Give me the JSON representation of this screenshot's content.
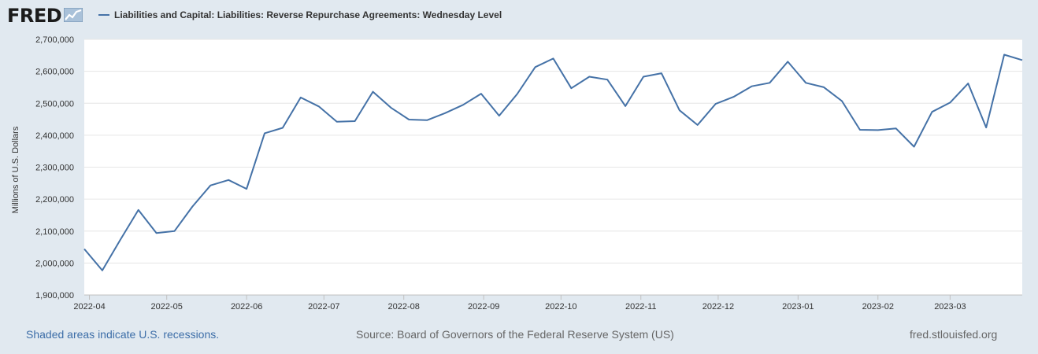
{
  "header": {
    "logo_text": "FRED",
    "logo_icon": "chart-line-icon",
    "legend_label": "Liabilities and Capital: Liabilities: Reverse Repurchase Agreements: Wednesday Level"
  },
  "footer": {
    "recessions_note": "Shaded areas indicate U.S. recessions.",
    "source": "Source: Board of Governors of the Federal Reserve System (US)",
    "site": "fred.stlouisfed.org"
  },
  "colors": {
    "series": "#4572a7",
    "background": "#e1e9f0",
    "plot": "#ffffff",
    "grid": "#e6e6e6",
    "link": "#3d6ea8"
  },
  "chart_data": {
    "type": "line",
    "title": "",
    "xlabel": "",
    "ylabel": "Millions of U.S. Dollars",
    "ylim": [
      1900000,
      2700000
    ],
    "yticks": [
      1900000,
      2000000,
      2100000,
      2200000,
      2300000,
      2400000,
      2500000,
      2600000,
      2700000
    ],
    "ytick_labels": [
      "1,900,000",
      "2,000,000",
      "2,100,000",
      "2,200,000",
      "2,300,000",
      "2,400,000",
      "2,500,000",
      "2,600,000",
      "2,700,000"
    ],
    "xlim": [
      "2022-03-30",
      "2023-03-29"
    ],
    "xticks": [
      "2022-04-01",
      "2022-05-01",
      "2022-06-01",
      "2022-07-01",
      "2022-08-01",
      "2022-09-01",
      "2022-10-01",
      "2022-11-01",
      "2022-12-01",
      "2023-01-01",
      "2023-02-01",
      "2023-03-01"
    ],
    "xtick_labels": [
      "2022-04",
      "2022-05",
      "2022-06",
      "2022-07",
      "2022-08",
      "2022-09",
      "2022-10",
      "2022-11",
      "2022-12",
      "2023-01",
      "2023-02",
      "2023-03"
    ],
    "grid": true,
    "legend": "top-left",
    "series": [
      {
        "name": "Liabilities and Capital: Liabilities: Reverse Repurchase Agreements: Wednesday Level",
        "x": [
          "2022-03-30",
          "2022-04-06",
          "2022-04-13",
          "2022-04-20",
          "2022-04-27",
          "2022-05-04",
          "2022-05-11",
          "2022-05-18",
          "2022-05-25",
          "2022-06-01",
          "2022-06-08",
          "2022-06-15",
          "2022-06-22",
          "2022-06-29",
          "2022-07-06",
          "2022-07-13",
          "2022-07-20",
          "2022-07-27",
          "2022-08-03",
          "2022-08-10",
          "2022-08-17",
          "2022-08-24",
          "2022-08-31",
          "2022-09-07",
          "2022-09-14",
          "2022-09-21",
          "2022-09-28",
          "2022-10-05",
          "2022-10-12",
          "2022-10-19",
          "2022-10-26",
          "2022-11-02",
          "2022-11-09",
          "2022-11-16",
          "2022-11-23",
          "2022-11-30",
          "2022-12-07",
          "2022-12-14",
          "2022-12-21",
          "2022-12-28",
          "2023-01-04",
          "2023-01-11",
          "2023-01-18",
          "2023-01-25",
          "2023-02-01",
          "2023-02-08",
          "2023-02-15",
          "2023-02-22",
          "2023-03-01",
          "2023-03-08",
          "2023-03-15",
          "2023-03-22",
          "2023-03-29"
        ],
        "values": [
          2044000,
          1977000,
          2073000,
          2166000,
          2094000,
          2100000,
          2177000,
          2243000,
          2260000,
          2232000,
          2406000,
          2423000,
          2518000,
          2490000,
          2442000,
          2444000,
          2536000,
          2486000,
          2449000,
          2447000,
          2469000,
          2495000,
          2530000,
          2461000,
          2529000,
          2613000,
          2640000,
          2547000,
          2583000,
          2574000,
          2491000,
          2583000,
          2594000,
          2478000,
          2432000,
          2498000,
          2520000,
          2553000,
          2564000,
          2630000,
          2564000,
          2550000,
          2507000,
          2417000,
          2416000,
          2421000,
          2364000,
          2473000,
          2502000,
          2562000,
          2424000,
          2652000,
          2635000
        ]
      }
    ]
  }
}
